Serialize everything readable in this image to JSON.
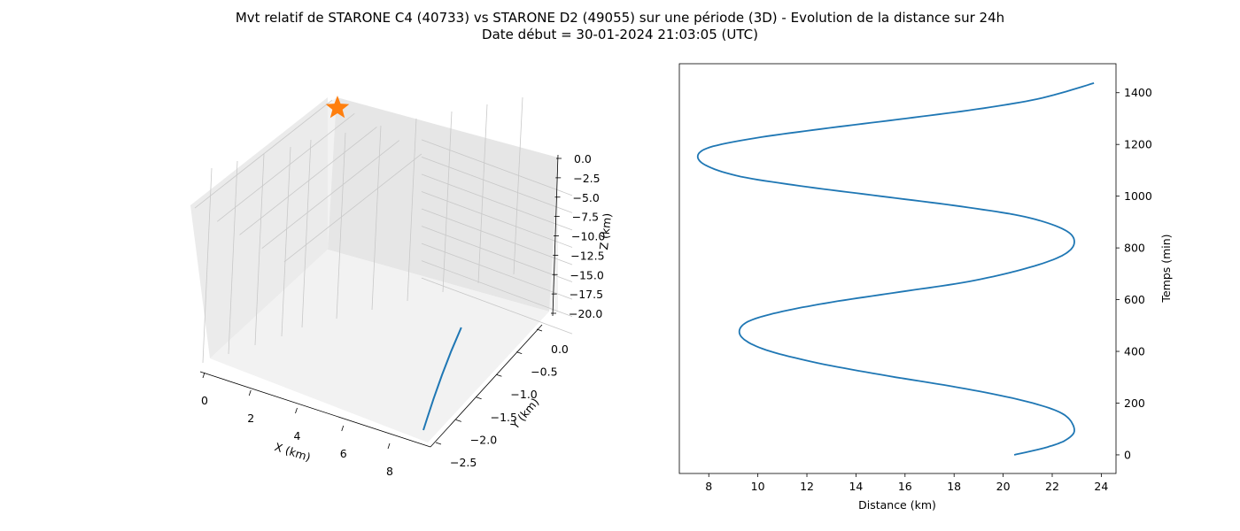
{
  "figure": {
    "title_line1": "Mvt relatif de STARONE C4 (40733) vs STARONE D2 (49055) sur une période (3D) - Evolution de la distance sur 24h",
    "title_line2": "Date début = 30-01-2024 21:03:05 (UTC)"
  },
  "chart_data": [
    {
      "type": "line3d",
      "xlabel": "X (km)",
      "ylabel": "Y (km)",
      "zlabel": "Z (km)",
      "xlim": [
        -0.4,
        8.8
      ],
      "ylim": [
        -2.6,
        0.2
      ],
      "zlim": [
        -21,
        1
      ],
      "xticks": [
        0,
        2,
        4,
        6,
        8
      ],
      "xtick_labels": [
        "0",
        "2",
        "4",
        "6",
        "8"
      ],
      "yticks": [
        0.0,
        -0.5,
        -1.0,
        -1.5,
        -2.0,
        -2.5
      ],
      "ytick_labels": [
        "0.0",
        "−0.5",
        "−1.0",
        "−1.5",
        "−2.0",
        "−2.5"
      ],
      "zticks": [
        0.0,
        -2.5,
        -5.0,
        -7.5,
        -10.0,
        -12.5,
        -15.0,
        -17.5,
        -20.0
      ],
      "ztick_labels": [
        "0.0",
        "−2.5",
        "−5.0",
        "−7.5",
        "−10.0",
        "−12.5",
        "−15.0",
        "−17.5",
        "−20.0"
      ],
      "grid": true,
      "series": [
        {
          "kind": "trajectory",
          "color": "#1f77b4",
          "x": [
            8.1,
            8.0,
            7.8,
            7.5,
            7.2,
            6.9
          ],
          "y": [
            -2.3,
            -2.0,
            -1.6,
            -1.2,
            -0.8,
            -0.4
          ],
          "z": [
            -20.0,
            -19.3,
            -18.0,
            -16.5,
            -15.0,
            -13.5
          ]
        },
        {
          "kind": "marker-star",
          "color": "#ff7f0e",
          "x": [
            0
          ],
          "y": [
            0
          ],
          "z": [
            0
          ]
        }
      ]
    },
    {
      "type": "line",
      "xlabel": "Distance (km)",
      "ylabel": "Temps (min)",
      "xlim": [
        6.8,
        24.6
      ],
      "ylim": [
        -72,
        1512
      ],
      "xticks": [
        8,
        10,
        12,
        14,
        16,
        18,
        20,
        22,
        24
      ],
      "xtick_labels": [
        "8",
        "10",
        "12",
        "14",
        "16",
        "18",
        "20",
        "22",
        "24"
      ],
      "yticks": [
        0,
        200,
        400,
        600,
        800,
        1000,
        1200,
        1400
      ],
      "ytick_labels": [
        "0",
        "200",
        "400",
        "600",
        "800",
        "1000",
        "1200",
        "1400"
      ],
      "yaxis_side": "right",
      "grid": false,
      "series": [
        {
          "color": "#1f77b4",
          "distance": [
            20.45,
            21.8,
            22.6,
            22.9,
            22.4,
            20.8,
            18.2,
            15.0,
            12.2,
            10.2,
            9.3,
            9.5,
            10.8,
            13.0,
            15.8,
            18.6,
            20.9,
            22.4,
            22.9,
            22.5,
            20.9,
            18.3,
            15.0,
            11.7,
            9.1,
            7.7,
            7.8,
            9.6,
            12.6,
            16.0,
            19.2,
            21.6,
            23.7
          ],
          "time": [
            0,
            30,
            60,
            100,
            160,
            210,
            260,
            310,
            360,
            410,
            460,
            510,
            550,
            590,
            630,
            670,
            720,
            770,
            820,
            870,
            920,
            960,
            1000,
            1040,
            1080,
            1130,
            1180,
            1220,
            1260,
            1300,
            1340,
            1380,
            1437
          ]
        }
      ]
    }
  ]
}
